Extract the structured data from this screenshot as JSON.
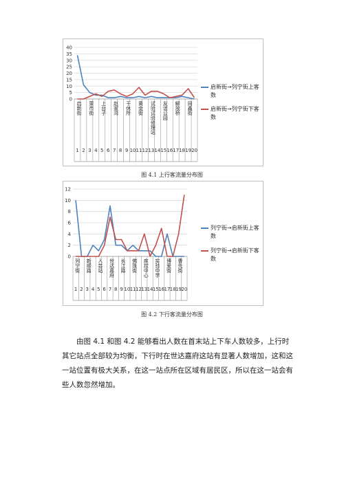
{
  "chart_data": [
    {
      "type": "line",
      "ylim": [
        0,
        40
      ],
      "yticks": [
        0,
        5,
        10,
        15,
        20,
        25,
        30,
        35,
        40
      ],
      "x": [
        1,
        2,
        3,
        4,
        5,
        6,
        7,
        8,
        9,
        10,
        11,
        12,
        13,
        14,
        15,
        16,
        17,
        18,
        19,
        20
      ],
      "xlabels": [
        "启新街",
        "",
        "栗市街",
        "",
        "上台子",
        "",
        "赵家湾",
        "",
        "干休所",
        "",
        "黄金街",
        "",
        "试验试验修理站",
        "",
        "友谊公园",
        "",
        "解放桥",
        "",
        "同鑫街",
        ""
      ],
      "legend_position": "right",
      "grid": true,
      "series": [
        {
          "name": "启新街→列宁街上客数",
          "color": "#4f81bd",
          "values": [
            34,
            11,
            5,
            3,
            3,
            1,
            1,
            2,
            1,
            1,
            2,
            1,
            2,
            1,
            1,
            1,
            1,
            2,
            1,
            0
          ]
        },
        {
          "name": "启新街→列宁街下客数",
          "color": "#c0504d",
          "values": [
            0,
            0,
            2,
            4,
            2,
            6,
            7,
            4,
            2,
            4,
            9,
            3,
            6,
            6,
            4,
            1,
            2,
            3,
            8,
            1
          ]
        }
      ]
    },
    {
      "type": "line",
      "ylim": [
        0,
        12
      ],
      "yticks": [
        0,
        2,
        4,
        6,
        8,
        10,
        12
      ],
      "x": [
        1,
        2,
        3,
        4,
        5,
        6,
        7,
        8,
        9,
        10,
        11,
        12,
        13,
        14,
        15,
        16,
        17,
        18,
        19,
        20
      ],
      "xlabels": [
        "列宁街",
        "",
        "新顺路",
        "",
        "人芸站",
        "",
        "世达嘉府",
        "",
        "长江路",
        "",
        "佛珠街",
        "",
        "疾控中心",
        "",
        "实验中学",
        "",
        "博爱街",
        "",
        "曹先街",
        ""
      ],
      "legend_position": "right",
      "grid": true,
      "series": [
        {
          "name": "列宁街→启新街上客数",
          "color": "#4f81bd",
          "values": [
            10,
            0,
            0,
            2,
            1,
            3,
            9,
            2,
            2,
            1,
            2,
            1,
            1,
            1,
            0,
            0,
            4,
            0,
            0,
            0
          ]
        },
        {
          "name": "列宁街→启新街下客数",
          "color": "#c0504d",
          "values": [
            0,
            0,
            0,
            0,
            0,
            2,
            7,
            3,
            3,
            1,
            1,
            1,
            4,
            0,
            2,
            5,
            0,
            0,
            4,
            11
          ]
        }
      ]
    }
  ],
  "captions": {
    "fig1": "图 4.1 上行客流量分布图",
    "fig2": "图 4.2 下行客流量分布图"
  },
  "paragraph": "由图 4.1 和图 4.2 能够看出人数在首末站上下车人数较多，上行时其它站点全部较为均衡，下行时在世达嘉府这站有显著人数增加，这和这一站位置有极大关系，在这一站点所在区域有居民区，所以在这一站会有些人数忽然增加。"
}
